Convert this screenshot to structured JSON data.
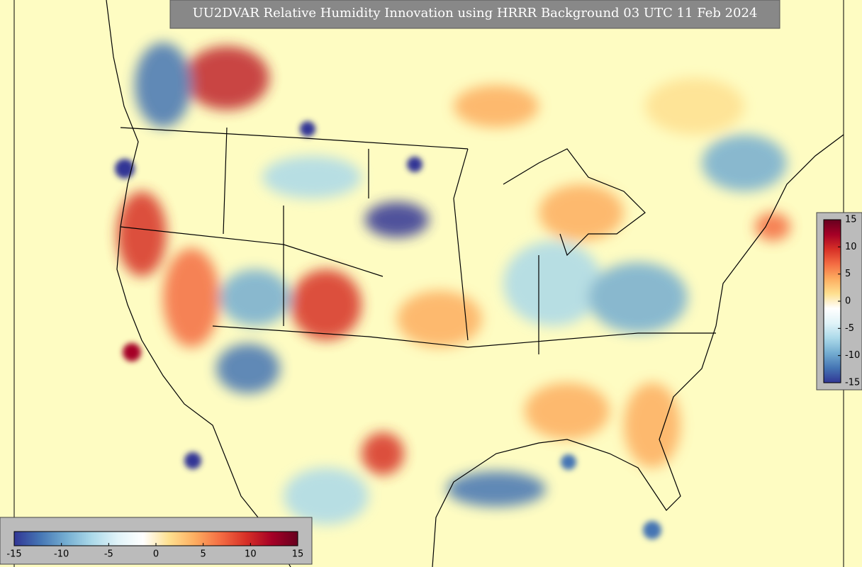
{
  "title": "UU2DVAR Relative Humidity Innovation using HRRR Background 03 UTC 11 Feb 2024",
  "colormap": [
    "#313695",
    "#4575b4",
    "#74add1",
    "#abd9e9",
    "#e0f3f8",
    "#ffffff",
    "#fee090",
    "#fdae61",
    "#f46d43",
    "#d73027",
    "#a50026",
    "#67001f"
  ],
  "colorbars": [
    {
      "orientation": "horizontal",
      "lim": [
        -15,
        15
      ],
      "ticks": [
        -15,
        -10,
        -5,
        0,
        5,
        10,
        15
      ]
    },
    {
      "orientation": "vertical",
      "lim": [
        -15,
        15
      ],
      "ticks": [
        -15,
        -10,
        -5,
        0,
        5,
        10,
        15
      ]
    }
  ]
}
